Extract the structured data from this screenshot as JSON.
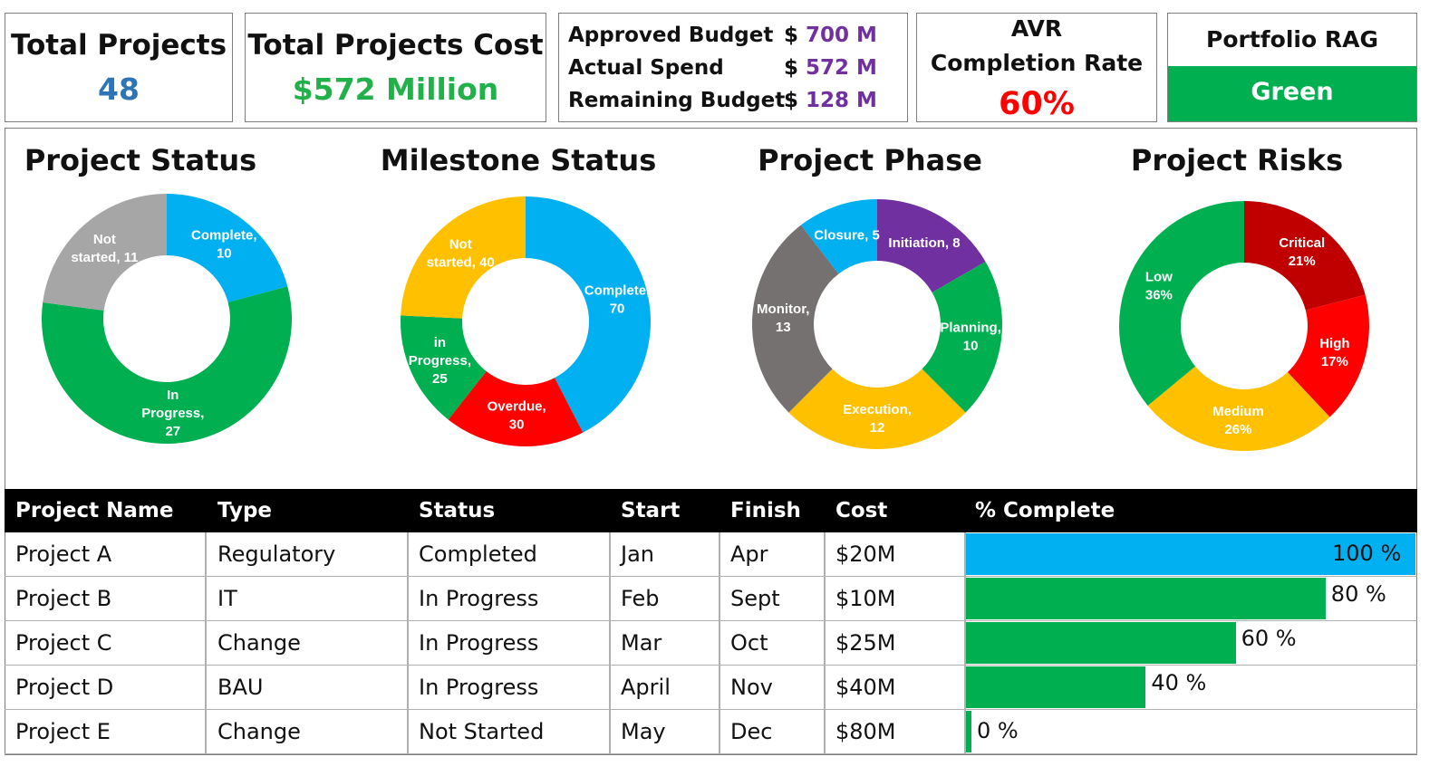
{
  "kpis": {
    "total_projects": {
      "title": "Total Projects",
      "value": "48",
      "color": "#2e75b6"
    },
    "total_cost": {
      "title": "Total Projects Cost",
      "value": "$572 Million",
      "color": "#22b04a"
    },
    "budget": {
      "rows": [
        {
          "label": "Approved Budget",
          "dollar": "$",
          "value": "700 M"
        },
        {
          "label": "Actual Spend",
          "dollar": "$",
          "value": "572 M"
        },
        {
          "label": "Remaining Budget",
          "dollar": "$",
          "value": "128 M"
        }
      ],
      "value_color": "#7030a0"
    },
    "completion": {
      "title_line1": "AVR",
      "title_line2": "Completion Rate",
      "value": "60%",
      "color": "#ff0000"
    },
    "rag": {
      "title": "Portfolio RAG",
      "value": "Green",
      "color": "#00b050"
    }
  },
  "chart_data": [
    {
      "type": "pie",
      "title": "Project Status",
      "series": [
        {
          "name": "Complete",
          "value": 10,
          "label": [
            "Complete,",
            "10"
          ],
          "color": "#00b0f0"
        },
        {
          "name": "In Progress",
          "value": 27,
          "label": [
            "In",
            "Progress,",
            "27"
          ],
          "color": "#00b050"
        },
        {
          "name": "Not started",
          "value": 11,
          "label": [
            "Not",
            "started, 11"
          ],
          "color": "#a6a6a6"
        }
      ]
    },
    {
      "type": "pie",
      "title": "Milestone Status",
      "series": [
        {
          "name": "Complete",
          "value": 70,
          "label": [
            "Complete,",
            "70"
          ],
          "color": "#00b0f0"
        },
        {
          "name": "Overdue",
          "value": 30,
          "label": [
            "Overdue,",
            "30"
          ],
          "color": "#ff0000"
        },
        {
          "name": "in Progress",
          "value": 25,
          "label": [
            "in",
            "Progress,",
            "25"
          ],
          "color": "#00b050"
        },
        {
          "name": "Not started",
          "value": 40,
          "label": [
            "Not",
            "started, 40"
          ],
          "color": "#ffc000"
        }
      ]
    },
    {
      "type": "pie",
      "title": "Project Phase",
      "series": [
        {
          "name": "Initiation",
          "value": 8,
          "label": [
            "Initiation, 8"
          ],
          "color": "#7030a0"
        },
        {
          "name": "Planning",
          "value": 10,
          "label": [
            "Planning,",
            "10"
          ],
          "color": "#00b050"
        },
        {
          "name": "Execution",
          "value": 12,
          "label": [
            "Execution,",
            "12"
          ],
          "color": "#ffc000"
        },
        {
          "name": "Monitor",
          "value": 13,
          "label": [
            "Monitor,",
            "13"
          ],
          "color": "#767171"
        },
        {
          "name": "Closure",
          "value": 5,
          "label": [
            "Closure, 5"
          ],
          "color": "#00b0f0"
        }
      ]
    },
    {
      "type": "pie",
      "title": "Project Risks",
      "series": [
        {
          "name": "Critical",
          "value": 21,
          "label": [
            "Critical",
            "21%"
          ],
          "color": "#c00000"
        },
        {
          "name": "High",
          "value": 17,
          "label": [
            "High",
            "17%"
          ],
          "color": "#ff0000"
        },
        {
          "name": "Medium",
          "value": 26,
          "label": [
            "Medium",
            "26%"
          ],
          "color": "#ffc000"
        },
        {
          "name": "Low",
          "value": 36,
          "label": [
            "Low",
            "36%"
          ],
          "color": "#00b050"
        }
      ]
    }
  ],
  "table": {
    "columns": [
      "Project Name",
      "Type",
      "Status",
      "Start",
      "Finish",
      "Cost",
      "% Complete"
    ],
    "rows": [
      {
        "name": "Project A",
        "type": "Regulatory",
        "status": "Completed",
        "start": "Jan",
        "finish": "Apr",
        "cost": "$20M",
        "pct": 100,
        "pct_label": "100 %",
        "bar_color": "#00b0f0"
      },
      {
        "name": "Project B",
        "type": "IT",
        "status": "In Progress",
        "start": "Feb",
        "finish": "Sept",
        "cost": "$10M",
        "pct": 80,
        "pct_label": "80 %",
        "bar_color": "#00b050"
      },
      {
        "name": "Project C",
        "type": "Change",
        "status": "In Progress",
        "start": "Mar",
        "finish": "Oct",
        "cost": "$25M",
        "pct": 60,
        "pct_label": "60 %",
        "bar_color": "#00b050"
      },
      {
        "name": "Project D",
        "type": "BAU",
        "status": "In Progress",
        "start": "April",
        "finish": "Nov",
        "cost": "$40M",
        "pct": 40,
        "pct_label": "40 %",
        "bar_color": "#00b050"
      },
      {
        "name": "Project E",
        "type": "Change",
        "status": "Not Started",
        "start": "May",
        "finish": "Dec",
        "cost": "$80M",
        "pct": 0,
        "pct_label": "0 %",
        "bar_color": "#00b050"
      }
    ]
  }
}
